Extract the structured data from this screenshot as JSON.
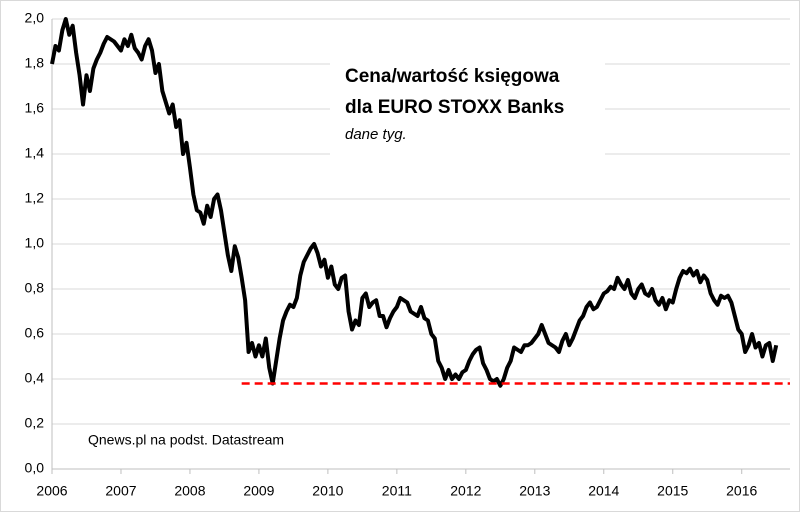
{
  "chart_data": {
    "type": "line",
    "title": "Cena/wartość księgowa",
    "title_line2": "dla EURO STOXX Banks",
    "subtitle": "dane tyg.",
    "source": "Qnews.pl na podst. Datastream",
    "x": [
      2006,
      2006.05,
      2006.1,
      2006.15,
      2006.2,
      2006.25,
      2006.3,
      2006.35,
      2006.4,
      2006.45,
      2006.5,
      2006.55,
      2006.6,
      2006.65,
      2006.7,
      2006.75,
      2006.8,
      2006.85,
      2006.9,
      2006.95,
      2007,
      2007.05,
      2007.1,
      2007.15,
      2007.2,
      2007.25,
      2007.3,
      2007.35,
      2007.4,
      2007.45,
      2007.5,
      2007.55,
      2007.6,
      2007.65,
      2007.7,
      2007.75,
      2007.8,
      2007.85,
      2007.9,
      2007.95,
      2008,
      2008.05,
      2008.1,
      2008.15,
      2008.2,
      2008.25,
      2008.3,
      2008.35,
      2008.4,
      2008.45,
      2008.5,
      2008.55,
      2008.6,
      2008.65,
      2008.7,
      2008.75,
      2008.8,
      2008.85,
      2008.9,
      2008.95,
      2009,
      2009.05,
      2009.1,
      2009.15,
      2009.2,
      2009.25,
      2009.3,
      2009.35,
      2009.4,
      2009.45,
      2009.5,
      2009.55,
      2009.6,
      2009.65,
      2009.7,
      2009.75,
      2009.8,
      2009.85,
      2009.9,
      2009.95,
      2010,
      2010.05,
      2010.1,
      2010.15,
      2010.2,
      2010.25,
      2010.3,
      2010.35,
      2010.4,
      2010.45,
      2010.5,
      2010.55,
      2010.6,
      2010.65,
      2010.7,
      2010.75,
      2010.8,
      2010.85,
      2010.9,
      2010.95,
      2011,
      2011.05,
      2011.1,
      2011.15,
      2011.2,
      2011.25,
      2011.3,
      2011.35,
      2011.4,
      2011.45,
      2011.5,
      2011.55,
      2011.6,
      2011.65,
      2011.7,
      2011.75,
      2011.8,
      2011.85,
      2011.9,
      2011.95,
      2012,
      2012.05,
      2012.1,
      2012.15,
      2012.2,
      2012.25,
      2012.3,
      2012.35,
      2012.4,
      2012.45,
      2012.5,
      2012.55,
      2012.6,
      2012.65,
      2012.7,
      2012.75,
      2012.8,
      2012.85,
      2012.9,
      2012.95,
      2013,
      2013.05,
      2013.1,
      2013.15,
      2013.2,
      2013.25,
      2013.3,
      2013.35,
      2013.4,
      2013.45,
      2013.5,
      2013.55,
      2013.6,
      2013.65,
      2013.7,
      2013.75,
      2013.8,
      2013.85,
      2013.9,
      2013.95,
      2014,
      2014.05,
      2014.1,
      2014.15,
      2014.2,
      2014.25,
      2014.3,
      2014.35,
      2014.4,
      2014.45,
      2014.5,
      2014.55,
      2014.6,
      2014.65,
      2014.7,
      2014.75,
      2014.8,
      2014.85,
      2014.9,
      2014.95,
      2015,
      2015.05,
      2015.1,
      2015.15,
      2015.2,
      2015.25,
      2015.3,
      2015.35,
      2015.4,
      2015.45,
      2015.5,
      2015.55,
      2015.6,
      2015.65,
      2015.7,
      2015.75,
      2015.8,
      2015.85,
      2015.9,
      2015.95,
      2016,
      2016.05,
      2016.1,
      2016.15,
      2016.2,
      2016.25,
      2016.3,
      2016.35,
      2016.4,
      2016.45,
      2016.5
    ],
    "series": [
      {
        "color": "#000000",
        "values": [
          1.8,
          1.88,
          1.86,
          1.95,
          2.0,
          1.93,
          1.97,
          1.85,
          1.75,
          1.62,
          1.75,
          1.68,
          1.78,
          1.82,
          1.85,
          1.89,
          1.92,
          1.91,
          1.9,
          1.88,
          1.86,
          1.91,
          1.88,
          1.93,
          1.87,
          1.85,
          1.82,
          1.88,
          1.91,
          1.86,
          1.76,
          1.8,
          1.68,
          1.63,
          1.58,
          1.62,
          1.52,
          1.55,
          1.4,
          1.45,
          1.34,
          1.22,
          1.15,
          1.14,
          1.09,
          1.17,
          1.12,
          1.2,
          1.22,
          1.15,
          1.05,
          0.95,
          0.88,
          0.99,
          0.94,
          0.85,
          0.75,
          0.52,
          0.56,
          0.5,
          0.55,
          0.5,
          0.58,
          0.45,
          0.38,
          0.48,
          0.58,
          0.66,
          0.7,
          0.73,
          0.72,
          0.76,
          0.86,
          0.92,
          0.95,
          0.98,
          1.0,
          0.96,
          0.9,
          0.93,
          0.85,
          0.9,
          0.82,
          0.8,
          0.85,
          0.86,
          0.7,
          0.62,
          0.66,
          0.64,
          0.76,
          0.78,
          0.72,
          0.74,
          0.75,
          0.68,
          0.68,
          0.63,
          0.67,
          0.7,
          0.72,
          0.76,
          0.75,
          0.74,
          0.7,
          0.69,
          0.68,
          0.72,
          0.67,
          0.66,
          0.6,
          0.58,
          0.48,
          0.45,
          0.4,
          0.44,
          0.4,
          0.42,
          0.4,
          0.43,
          0.44,
          0.48,
          0.51,
          0.53,
          0.54,
          0.47,
          0.44,
          0.4,
          0.39,
          0.4,
          0.37,
          0.4,
          0.45,
          0.48,
          0.54,
          0.53,
          0.52,
          0.55,
          0.55,
          0.56,
          0.58,
          0.6,
          0.64,
          0.6,
          0.56,
          0.55,
          0.54,
          0.52,
          0.57,
          0.6,
          0.55,
          0.58,
          0.62,
          0.66,
          0.68,
          0.72,
          0.74,
          0.71,
          0.72,
          0.75,
          0.78,
          0.79,
          0.81,
          0.8,
          0.85,
          0.82,
          0.8,
          0.84,
          0.78,
          0.76,
          0.8,
          0.82,
          0.78,
          0.77,
          0.8,
          0.75,
          0.73,
          0.76,
          0.71,
          0.75,
          0.74,
          0.8,
          0.85,
          0.88,
          0.87,
          0.89,
          0.86,
          0.88,
          0.83,
          0.86,
          0.84,
          0.78,
          0.75,
          0.73,
          0.77,
          0.76,
          0.77,
          0.74,
          0.68,
          0.62,
          0.6,
          0.52,
          0.55,
          0.6,
          0.54,
          0.56,
          0.5,
          0.55,
          0.56,
          0.48,
          0.55
        ]
      }
    ],
    "reference_line": {
      "value": 0.38,
      "x_start": 2008.75,
      "color": "#ff0000",
      "dashed": true
    },
    "xlim": [
      2006,
      2016.7
    ],
    "xticks": [
      2006,
      2007,
      2008,
      2009,
      2010,
      2011,
      2012,
      2013,
      2014,
      2015,
      2016
    ],
    "ylim": [
      0,
      2
    ],
    "yticks": [
      {
        "value": 0,
        "label": "0,0"
      },
      {
        "value": 0.2,
        "label": "0,2"
      },
      {
        "value": 0.4,
        "label": "0,4"
      },
      {
        "value": 0.6,
        "label": "0,6"
      },
      {
        "value": 0.8,
        "label": "0,8"
      },
      {
        "value": 1,
        "label": "1,0"
      },
      {
        "value": 1.2,
        "label": "1,2"
      },
      {
        "value": 1.4,
        "label": "1,4"
      },
      {
        "value": 1.6,
        "label": "1,6"
      },
      {
        "value": 1.8,
        "label": "1,8"
      },
      {
        "value": 2,
        "label": "2,0"
      }
    ],
    "grid": true
  }
}
